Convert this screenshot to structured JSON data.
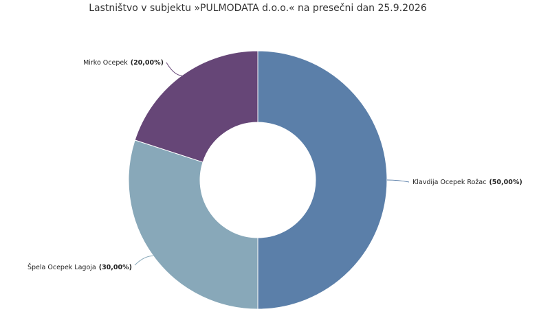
{
  "chart_data": {
    "type": "donut",
    "title": "Lastništvo v subjektu »PULMODATA d.o.o.« na presečni dan 25.9.2026",
    "categories": [
      "Klavdija Ocepek Rožac",
      "Špela Ocepek Lagoja",
      "Mirko Ocepek"
    ],
    "values": [
      50,
      30,
      20
    ],
    "value_labels": [
      "(50,00%)",
      "(30,00%)",
      "(20,00%)"
    ],
    "colors": [
      "#5b7fa9",
      "#88a8b9",
      "#664677"
    ]
  }
}
